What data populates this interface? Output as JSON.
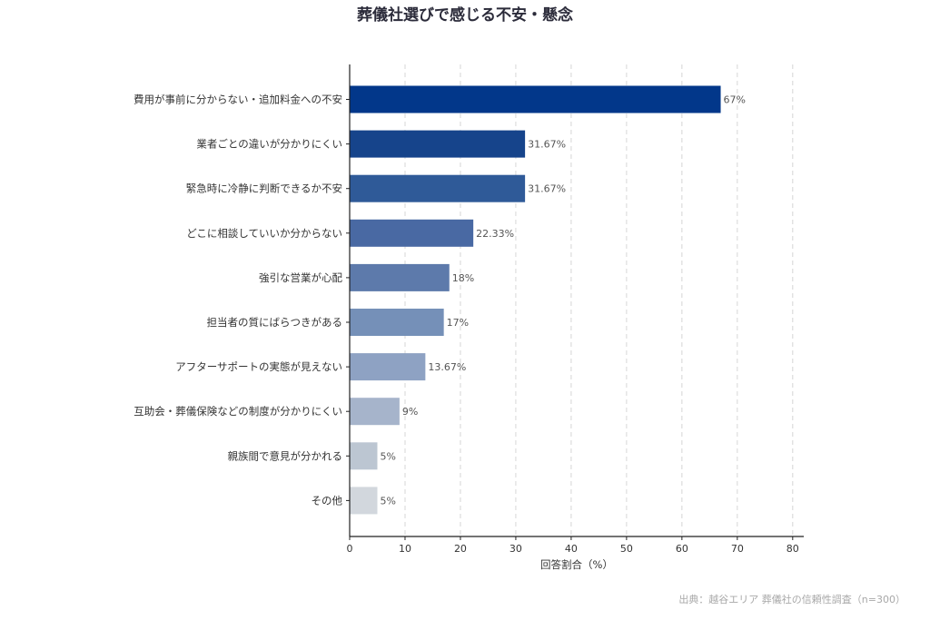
{
  "chart_data": {
    "type": "bar",
    "orientation": "horizontal",
    "title": "葬儀社選びで感じる不安・懸念",
    "xlabel": "回答割合（%）",
    "ylabel": "",
    "xlim": [
      0,
      82
    ],
    "xticks": [
      0,
      10,
      20,
      30,
      40,
      50,
      60,
      70,
      80
    ],
    "grid": "x-dashed",
    "categories": [
      "費用が事前に分からない・追加料金への不安",
      "業者ごとの違いが分かりにくい",
      "緊急時に冷静に判断できるか不安",
      "どこに相談していいか分からない",
      "強引な営業が心配",
      "担当者の質にばらつきがある",
      "アフターサポートの実態が見えない",
      "互助会・葬儀保険などの制度が分かりにくい",
      "親族間で意見が分かれる",
      "その他"
    ],
    "values": [
      67,
      31.67,
      31.67,
      22.33,
      18,
      17,
      13.67,
      9,
      5,
      5
    ],
    "value_labels": [
      "67%",
      "31.67%",
      "31.67%",
      "22.33%",
      "18%",
      "17%",
      "13.67%",
      "9%",
      "5%",
      "5%"
    ],
    "colors": [
      "#02378a",
      "#16448b",
      "#2f5a98",
      "#4969a3",
      "#5d7aab",
      "#7590b8",
      "#8ea2c3",
      "#a6b4cb",
      "#bcc6d2",
      "#d2d7dd"
    ]
  },
  "source": "出典：越谷エリア 葬儀社の信頼性調査（n=300）"
}
